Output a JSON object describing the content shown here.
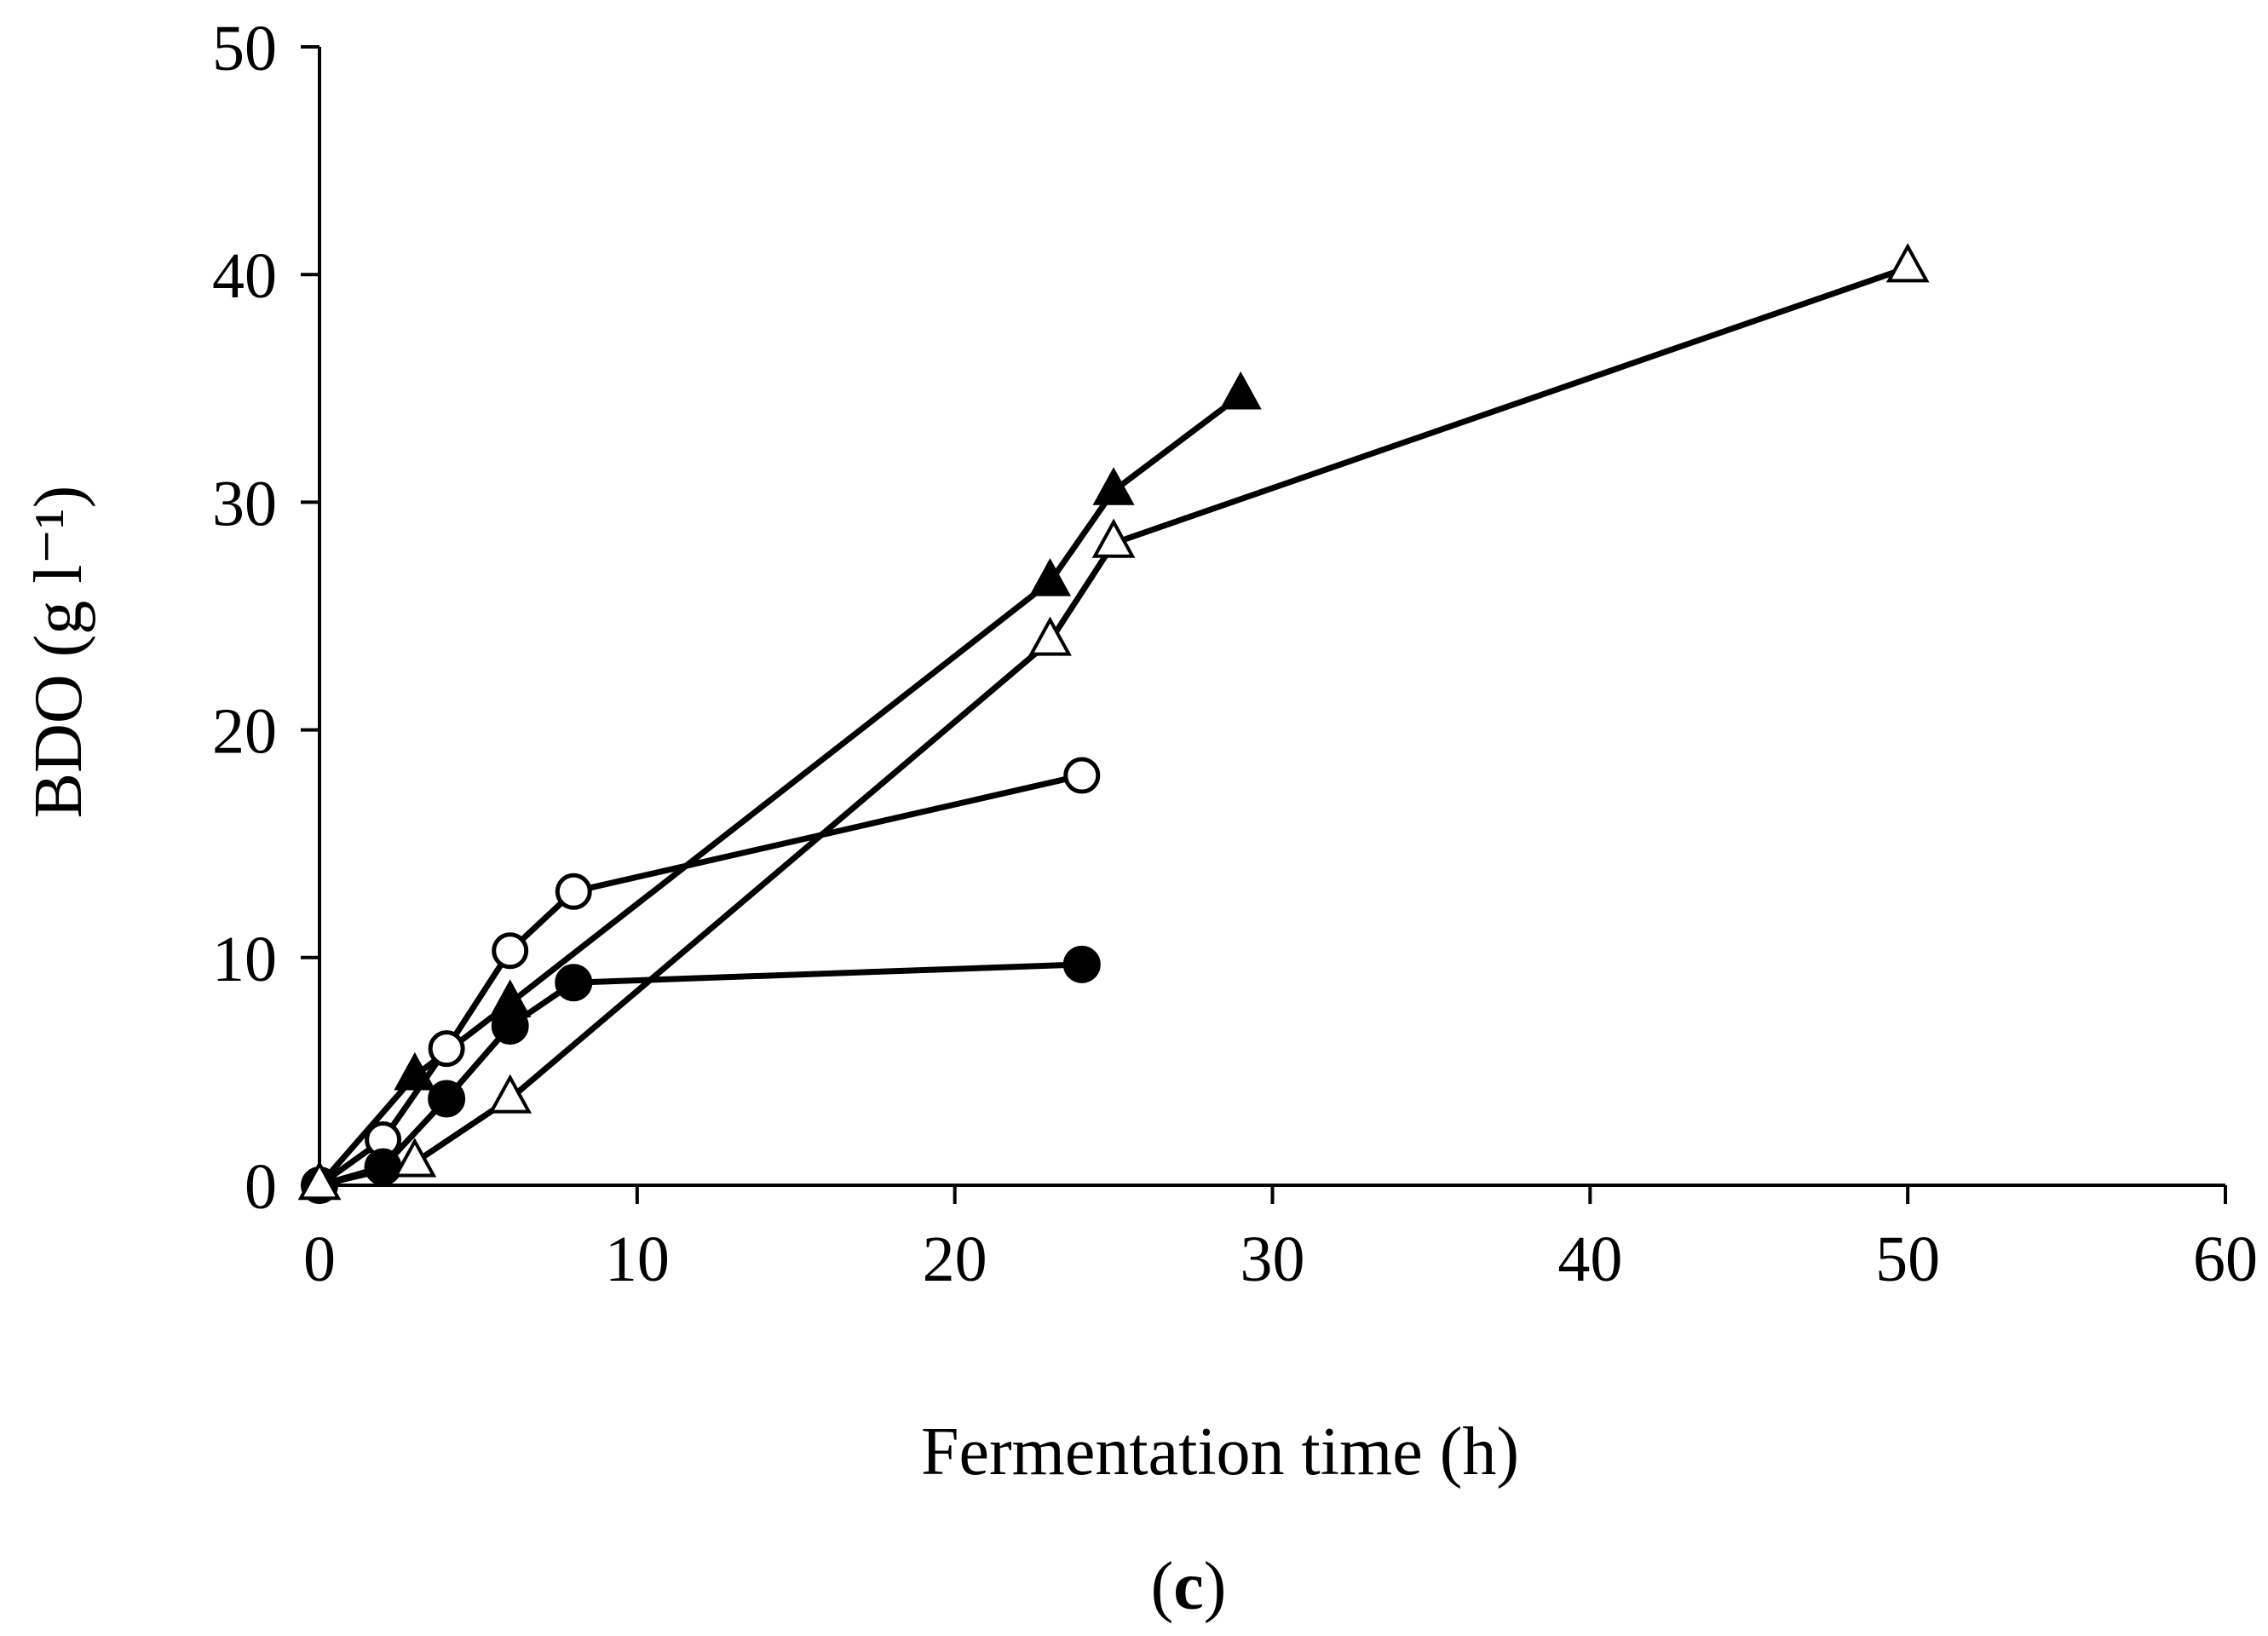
{
  "chart_data": {
    "type": "line",
    "title": "",
    "xlabel": "Fermentation time (h)",
    "ylabel": "BDO (g l⁻¹)",
    "panel_label_open": "(",
    "panel_label_letter": "c",
    "panel_label_close": ")",
    "xlim": [
      0,
      60
    ],
    "ylim": [
      0,
      50
    ],
    "xticks": [
      0,
      10,
      20,
      30,
      40,
      50,
      60
    ],
    "yticks": [
      0,
      10,
      20,
      30,
      40,
      50
    ],
    "grid": false,
    "legend": "none",
    "line_color": "#000000",
    "series": [
      {
        "name": "open circles",
        "marker": "circle-open",
        "x": [
          0,
          2,
          4,
          6,
          8,
          24
        ],
        "y": [
          0,
          2.0,
          6.0,
          10.3,
          12.9,
          18.0
        ]
      },
      {
        "name": "filled circles",
        "marker": "circle-filled",
        "x": [
          0,
          2,
          4,
          6,
          8,
          24
        ],
        "y": [
          0,
          0.8,
          3.8,
          7.0,
          8.9,
          9.7
        ]
      },
      {
        "name": "filled triangles",
        "marker": "triangle-filled",
        "x": [
          0,
          3,
          6,
          23,
          25,
          29
        ],
        "y": [
          0,
          4.8,
          8.0,
          26.5,
          30.5,
          34.7
        ]
      },
      {
        "name": "open triangles",
        "marker": "triangle-open",
        "x": [
          0,
          3,
          6,
          23,
          25,
          50
        ],
        "y": [
          0,
          1.0,
          3.8,
          23.9,
          28.2,
          40.3
        ]
      }
    ]
  }
}
